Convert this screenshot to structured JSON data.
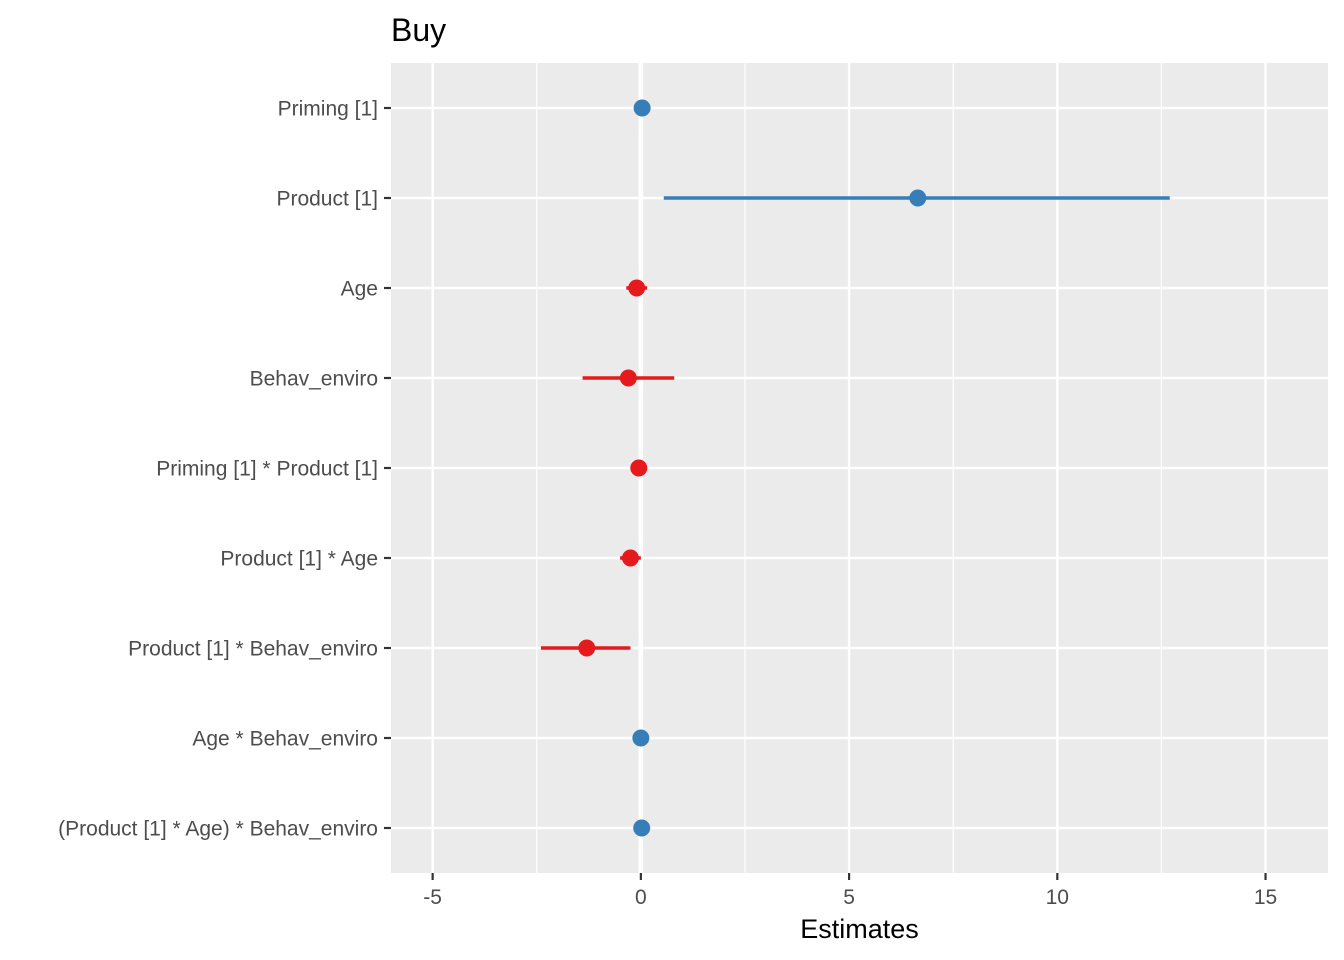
{
  "chart_data": {
    "type": "forest",
    "title": "Buy",
    "xlabel": "Estimates",
    "ylabel": "",
    "xlim": [
      -6,
      16.5
    ],
    "xticks": [
      -5,
      0,
      5,
      10,
      15
    ],
    "xticks_minor": [
      -2.5,
      2.5,
      7.5,
      12.5
    ],
    "grid": true,
    "legend": "none",
    "colors": {
      "positive": "#377eb8",
      "negative": "#e41a1c"
    },
    "terms": [
      {
        "label": "Priming [1]",
        "estimate": 0.03,
        "low": 0.03,
        "high": 0.03,
        "sign": "positive"
      },
      {
        "label": "Product [1]",
        "estimate": 6.65,
        "low": 0.55,
        "high": 12.7,
        "sign": "positive"
      },
      {
        "label": "Age",
        "estimate": -0.1,
        "low": -0.35,
        "high": 0.15,
        "sign": "negative"
      },
      {
        "label": "Behav_enviro",
        "estimate": -0.3,
        "low": -1.4,
        "high": 0.8,
        "sign": "negative"
      },
      {
        "label": "Priming [1] * Product [1]",
        "estimate": -0.05,
        "low": -0.05,
        "high": -0.05,
        "sign": "negative"
      },
      {
        "label": "Product [1] * Age",
        "estimate": -0.25,
        "low": -0.5,
        "high": 0.0,
        "sign": "negative"
      },
      {
        "label": "Product [1] * Behav_enviro",
        "estimate": -1.3,
        "low": -2.4,
        "high": -0.25,
        "sign": "negative"
      },
      {
        "label": "Age * Behav_enviro",
        "estimate": 0.0,
        "low": 0.0,
        "high": 0.0,
        "sign": "positive"
      },
      {
        "label": "(Product [1] * Age) * Behav_enviro",
        "estimate": 0.02,
        "low": 0.02,
        "high": 0.02,
        "sign": "positive"
      }
    ]
  }
}
